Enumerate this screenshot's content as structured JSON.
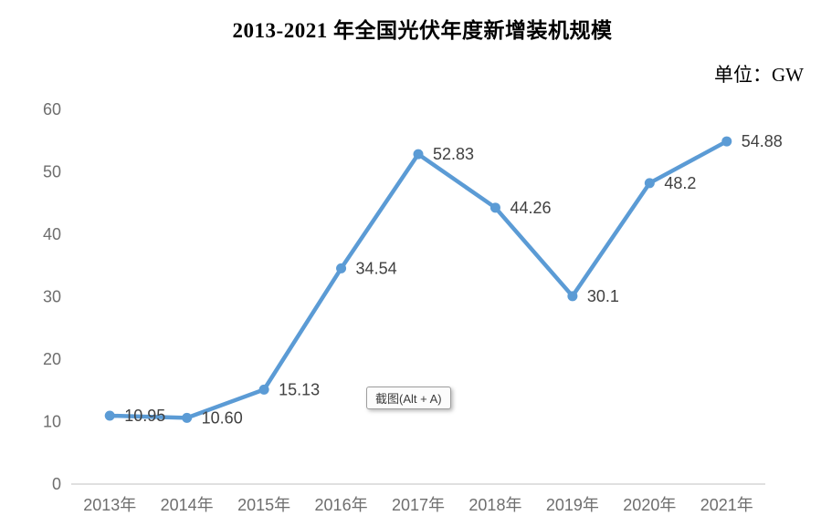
{
  "page": {
    "title": "2013-2021 年全国光伏年度新增装机规模",
    "unit_label": "单位：GW"
  },
  "tooltip": {
    "text": "截图(Alt + A)"
  },
  "chart_data": {
    "type": "line",
    "title": "2013-2021 年全国光伏年度新增装机规模",
    "unit": "GW",
    "categories": [
      "2013年",
      "2014年",
      "2015年",
      "2016年",
      "2017年",
      "2018年",
      "2019年",
      "2020年",
      "2021年"
    ],
    "series": [
      {
        "name": "全国光伏年度新增装机规模",
        "values": [
          10.95,
          10.6,
          15.13,
          34.54,
          52.83,
          44.26,
          30.1,
          48.2,
          54.88
        ]
      }
    ],
    "data_labels": [
      "10.95",
      "10.60",
      "15.13",
      "34.54",
      "52.83",
      "44.26",
      "30.1",
      "48.2",
      "54.88"
    ],
    "xlabel": "",
    "ylabel": "",
    "ylim": [
      0,
      60
    ],
    "yticks": [
      0,
      10,
      20,
      30,
      40,
      50,
      60
    ],
    "grid": false,
    "legend": "none",
    "colors": {
      "line": "#5B9BD5",
      "marker": "#5B9BD5",
      "axis_line": "#D6D6D6",
      "tick_label": "#6E6E6E",
      "data_label": "#414141"
    }
  }
}
